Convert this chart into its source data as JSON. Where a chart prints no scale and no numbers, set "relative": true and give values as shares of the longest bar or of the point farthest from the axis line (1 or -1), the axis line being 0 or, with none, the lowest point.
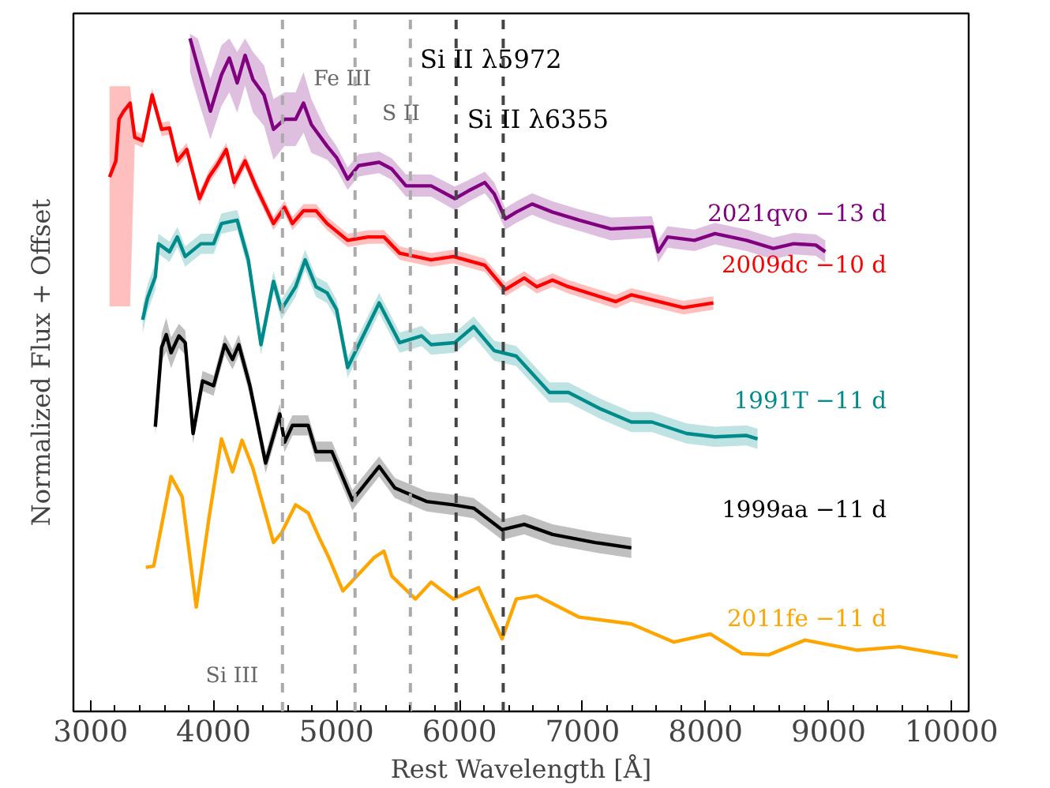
{
  "chart_data": {
    "type": "line",
    "relative": true,
    "xlabel": "Rest Wavelength [Å]",
    "ylabel": "Normalized Flux + Offset",
    "xlim": [
      2860,
      10140
    ],
    "xticks": [
      3000,
      4000,
      5000,
      6000,
      7000,
      8000,
      9000,
      10000
    ],
    "legend": false,
    "grid": false,
    "marker": "none",
    "line_style": "solid",
    "series": [
      {
        "name": "2021qvo −13 d",
        "color": "#800080",
        "x": [
          3808,
          3872,
          3974,
          4064,
          4128,
          4192,
          4256,
          4320,
          4410,
          4487,
          4577,
          4667,
          4731,
          4795,
          4923,
          5000,
          5090,
          5179,
          5346,
          5449,
          5564,
          5769,
          5961,
          6077,
          6205,
          6282,
          6372,
          6461,
          6590,
          6756,
          6974,
          7231,
          7564,
          7615,
          7692,
          7910,
          8077,
          8333,
          8551,
          8718,
          8897,
          8974
        ],
        "values": [
          1.0,
          0.958,
          0.892,
          0.946,
          0.971,
          0.934,
          0.975,
          0.939,
          0.916,
          0.865,
          0.88,
          0.88,
          0.904,
          0.872,
          0.84,
          0.823,
          0.791,
          0.811,
          0.816,
          0.806,
          0.781,
          0.781,
          0.762,
          0.774,
          0.786,
          0.769,
          0.732,
          0.742,
          0.754,
          0.742,
          0.73,
          0.717,
          0.72,
          0.683,
          0.705,
          0.7,
          0.71,
          0.7,
          0.688,
          0.695,
          0.693,
          0.683
        ],
        "lower": [
          0.95,
          0.91,
          0.85,
          0.9,
          0.92,
          0.89,
          0.93,
          0.89,
          0.87,
          0.82,
          0.84,
          0.84,
          0.86,
          0.83,
          0.82,
          0.805,
          0.775,
          0.795,
          0.8,
          0.79,
          0.765,
          0.765,
          0.745,
          0.758,
          0.77,
          0.752,
          0.716,
          0.726,
          0.738,
          0.726,
          0.714,
          0.7,
          0.704,
          0.667,
          0.689,
          0.684,
          0.694,
          0.684,
          0.672,
          0.679,
          0.677,
          0.667
        ],
        "upper": [
          1.007,
          1.0,
          0.94,
          0.99,
          1.0,
          0.98,
          1.0,
          0.98,
          0.96,
          0.91,
          0.92,
          0.92,
          0.95,
          0.91,
          0.86,
          0.84,
          0.808,
          0.828,
          0.832,
          0.822,
          0.798,
          0.798,
          0.78,
          0.79,
          0.802,
          0.786,
          0.748,
          0.758,
          0.77,
          0.758,
          0.746,
          0.734,
          0.736,
          0.7,
          0.721,
          0.716,
          0.726,
          0.716,
          0.704,
          0.711,
          0.709,
          0.7
        ]
      },
      {
        "name": "2009dc −10 d",
        "color": "#ff0000",
        "x": [
          3154,
          3205,
          3231,
          3269,
          3321,
          3359,
          3423,
          3500,
          3577,
          3641,
          3705,
          3782,
          3885,
          3962,
          4026,
          4103,
          4167,
          4256,
          4346,
          4487,
          4577,
          4641,
          4731,
          4833,
          4923,
          5090,
          5256,
          5385,
          5513,
          5769,
          5949,
          6205,
          6372,
          6526,
          6628,
          6756,
          6885,
          7269,
          7397,
          7820,
          8064
        ],
        "values": [
          0.794,
          0.818,
          0.88,
          0.892,
          0.904,
          0.853,
          0.848,
          0.916,
          0.865,
          0.867,
          0.818,
          0.835,
          0.762,
          0.794,
          0.811,
          0.835,
          0.786,
          0.818,
          0.779,
          0.725,
          0.749,
          0.725,
          0.744,
          0.744,
          0.725,
          0.7,
          0.705,
          0.705,
          0.681,
          0.671,
          0.676,
          0.663,
          0.627,
          0.644,
          0.631,
          0.641,
          0.631,
          0.609,
          0.619,
          0.6,
          0.607
        ],
        "lower": [
          0.602,
          0.602,
          0.602,
          0.602,
          0.602,
          0.843,
          0.838,
          0.906,
          0.855,
          0.857,
          0.808,
          0.825,
          0.752,
          0.784,
          0.801,
          0.825,
          0.776,
          0.808,
          0.769,
          0.715,
          0.739,
          0.715,
          0.734,
          0.734,
          0.715,
          0.69,
          0.695,
          0.695,
          0.671,
          0.661,
          0.666,
          0.653,
          0.617,
          0.634,
          0.621,
          0.631,
          0.621,
          0.599,
          0.609,
          0.59,
          0.597
        ],
        "upper": [
          0.929,
          0.929,
          0.929,
          0.929,
          0.929,
          0.863,
          0.858,
          0.926,
          0.875,
          0.877,
          0.828,
          0.845,
          0.772,
          0.804,
          0.821,
          0.845,
          0.796,
          0.828,
          0.789,
          0.735,
          0.759,
          0.735,
          0.754,
          0.754,
          0.735,
          0.71,
          0.715,
          0.715,
          0.691,
          0.681,
          0.686,
          0.673,
          0.637,
          0.654,
          0.641,
          0.651,
          0.641,
          0.619,
          0.629,
          0.61,
          0.617
        ]
      },
      {
        "name": "1991T −11 d",
        "color": "#008b8b",
        "x": [
          3423,
          3462,
          3526,
          3551,
          3641,
          3705,
          3769,
          3897,
          4000,
          4064,
          4192,
          4282,
          4385,
          4487,
          4551,
          4667,
          4744,
          4833,
          4923,
          5000,
          5090,
          5346,
          5513,
          5692,
          5769,
          5961,
          6115,
          6282,
          6461,
          6731,
          6885,
          7141,
          7397,
          7564,
          7846,
          8077,
          8333,
          8423
        ],
        "values": [
          0.582,
          0.614,
          0.646,
          0.695,
          0.683,
          0.705,
          0.676,
          0.695,
          0.695,
          0.725,
          0.73,
          0.671,
          0.545,
          0.639,
          0.597,
          0.631,
          0.671,
          0.631,
          0.622,
          0.597,
          0.511,
          0.607,
          0.548,
          0.558,
          0.545,
          0.548,
          0.572,
          0.536,
          0.528,
          0.474,
          0.474,
          0.45,
          0.43,
          0.43,
          0.413,
          0.408,
          0.41,
          0.405
        ],
        "lower": [
          0.562,
          0.594,
          0.626,
          0.68,
          0.668,
          0.69,
          0.661,
          0.68,
          0.68,
          0.71,
          0.715,
          0.656,
          0.53,
          0.624,
          0.582,
          0.616,
          0.656,
          0.616,
          0.607,
          0.582,
          0.496,
          0.592,
          0.533,
          0.543,
          0.53,
          0.533,
          0.557,
          0.521,
          0.513,
          0.459,
          0.459,
          0.435,
          0.415,
          0.415,
          0.398,
          0.393,
          0.395,
          0.39
        ],
        "upper": [
          0.602,
          0.634,
          0.666,
          0.71,
          0.698,
          0.72,
          0.691,
          0.71,
          0.71,
          0.74,
          0.745,
          0.686,
          0.56,
          0.654,
          0.612,
          0.646,
          0.686,
          0.646,
          0.637,
          0.612,
          0.526,
          0.622,
          0.563,
          0.573,
          0.56,
          0.563,
          0.587,
          0.551,
          0.543,
          0.489,
          0.489,
          0.465,
          0.445,
          0.445,
          0.428,
          0.423,
          0.425,
          0.42
        ]
      },
      {
        "name": "1999aa −11 d",
        "color": "#000000",
        "x": [
          3526,
          3577,
          3615,
          3654,
          3718,
          3769,
          3833,
          3910,
          4000,
          4090,
          4154,
          4205,
          4295,
          4423,
          4538,
          4577,
          4641,
          4769,
          4833,
          4962,
          5128,
          5346,
          5474,
          5731,
          5949,
          6115,
          6346,
          6526,
          6756,
          7102,
          7397
        ],
        "values": [
          0.423,
          0.541,
          0.56,
          0.533,
          0.558,
          0.548,
          0.413,
          0.491,
          0.484,
          0.545,
          0.523,
          0.545,
          0.484,
          0.369,
          0.442,
          0.4,
          0.425,
          0.425,
          0.386,
          0.386,
          0.314,
          0.364,
          0.332,
          0.312,
          0.307,
          0.302,
          0.27,
          0.278,
          0.263,
          0.251,
          0.243
        ],
        "lower": [
          0.41,
          0.52,
          0.535,
          0.51,
          0.54,
          0.53,
          0.398,
          0.476,
          0.469,
          0.53,
          0.508,
          0.53,
          0.469,
          0.354,
          0.427,
          0.385,
          0.41,
          0.41,
          0.371,
          0.371,
          0.299,
          0.349,
          0.317,
          0.297,
          0.292,
          0.287,
          0.255,
          0.263,
          0.248,
          0.236,
          0.228
        ],
        "upper": [
          0.436,
          0.562,
          0.585,
          0.556,
          0.576,
          0.566,
          0.428,
          0.506,
          0.499,
          0.56,
          0.538,
          0.56,
          0.499,
          0.384,
          0.457,
          0.415,
          0.44,
          0.44,
          0.401,
          0.401,
          0.329,
          0.379,
          0.347,
          0.327,
          0.322,
          0.317,
          0.285,
          0.293,
          0.278,
          0.266,
          0.258
        ]
      },
      {
        "name": "2011fe −11 d",
        "color": "#ffa500",
        "x": [
          3449,
          3513,
          3654,
          3744,
          3859,
          3962,
          4064,
          4154,
          4231,
          4320,
          4487,
          4551,
          4667,
          4769,
          4859,
          4936,
          5051,
          5179,
          5308,
          5385,
          5449,
          5641,
          5769,
          5949,
          6154,
          6346,
          6461,
          6628,
          6974,
          7397,
          7743,
          8038,
          8295,
          8513,
          8808,
          9231,
          9577,
          10051
        ],
        "values": [
          0.214,
          0.216,
          0.349,
          0.319,
          0.155,
          0.287,
          0.405,
          0.356,
          0.403,
          0.361,
          0.251,
          0.265,
          0.307,
          0.295,
          0.258,
          0.229,
          0.179,
          0.204,
          0.229,
          0.238,
          0.201,
          0.167,
          0.192,
          0.167,
          0.184,
          0.108,
          0.167,
          0.172,
          0.14,
          0.13,
          0.103,
          0.115,
          0.086,
          0.084,
          0.106,
          0.091,
          0.096,
          0.081
        ]
      }
    ],
    "ref_lines": [
      {
        "axis": "x",
        "value": 4560,
        "label": "Si III",
        "color": "#aaaaaa",
        "line_style": "dashed"
      },
      {
        "axis": "x",
        "value": 5150,
        "label": "Fe III",
        "color": "#aaaaaa",
        "line_style": "dashed"
      },
      {
        "axis": "x",
        "value": 5600,
        "label": "S II",
        "color": "#aaaaaa",
        "line_style": "dashed"
      },
      {
        "axis": "x",
        "value": 5972,
        "label": "Si II λ5972",
        "color": "#444444",
        "line_style": "dashed"
      },
      {
        "axis": "x",
        "value": 6355,
        "label": "Si II λ6355",
        "color": "#444444",
        "line_style": "dashed"
      }
    ]
  }
}
